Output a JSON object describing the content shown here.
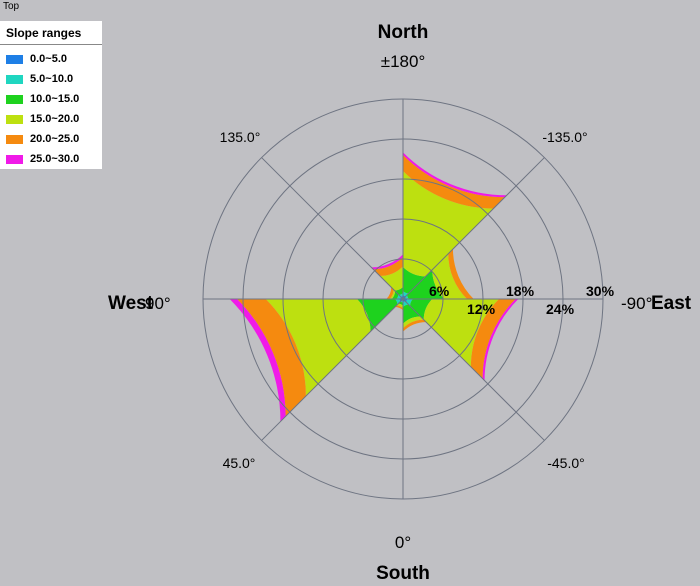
{
  "window": {
    "title": "Top"
  },
  "legend": {
    "title": "Slope ranges",
    "items": [
      {
        "label": "0.0~5.0",
        "color": "#1e7fe6"
      },
      {
        "label": "5.0~10.0",
        "color": "#1fd6c0"
      },
      {
        "label": "10.0~15.0",
        "color": "#1ed21e"
      },
      {
        "label": "15.0~20.0",
        "color": "#bde010"
      },
      {
        "label": "20.0~25.0",
        "color": "#f58a0f"
      },
      {
        "label": "25.0~30.0",
        "color": "#f01ae8"
      }
    ]
  },
  "directions": {
    "north": "North",
    "south": "South",
    "east": "East",
    "west": "West"
  },
  "chart_data": {
    "type": "polar-stacked-bar",
    "title": "",
    "radial_axis": {
      "min": 0,
      "max": 30,
      "unit": "%",
      "ticks": [
        "6%",
        "12%",
        "18%",
        "24%",
        "30%"
      ]
    },
    "angle_labels": [
      "±180°",
      "-135.0°",
      "-90°",
      "-45.0°",
      "0°",
      "45.0°",
      "90°",
      "135.0°"
    ],
    "categories": [
      "0.0~5.0",
      "5.0~10.0",
      "10.0~15.0",
      "15.0~20.0",
      "20.0~25.0",
      "25.0~30.0"
    ],
    "sectors": [
      {
        "aspect_range": [
          -180,
          -135
        ],
        "values": [
          0.6,
          0.6,
          3.6,
          14.4,
          2.4,
          0.4
        ]
      },
      {
        "aspect_range": [
          -135,
          -90
        ],
        "values": [
          0.5,
          0.4,
          5.3,
          3.4,
          1.0,
          0.0
        ]
      },
      {
        "aspect_range": [
          -90,
          -45
        ],
        "values": [
          0.7,
          0.8,
          2.9,
          10.0,
          2.5,
          0.4
        ]
      },
      {
        "aspect_range": [
          -45,
          0
        ],
        "values": [
          0.5,
          0.7,
          2.5,
          0.7,
          0.5,
          0.0
        ]
      },
      {
        "aspect_range": [
          0,
          45
        ],
        "values": [
          0.3,
          0.3,
          0.4,
          0.4,
          0.3,
          0.0
        ]
      },
      {
        "aspect_range": [
          45,
          90
        ],
        "values": [
          0.6,
          0.6,
          5.7,
          13.7,
          4.3,
          1.1
        ]
      },
      {
        "aspect_range": [
          90,
          135
        ],
        "values": [
          0.5,
          0.5,
          0.7,
          0.3,
          0.5,
          0.0
        ]
      },
      {
        "aspect_range": [
          135,
          180
        ],
        "values": [
          0.5,
          0.4,
          0.9,
          3.1,
          1.4,
          0.4
        ]
      }
    ]
  }
}
